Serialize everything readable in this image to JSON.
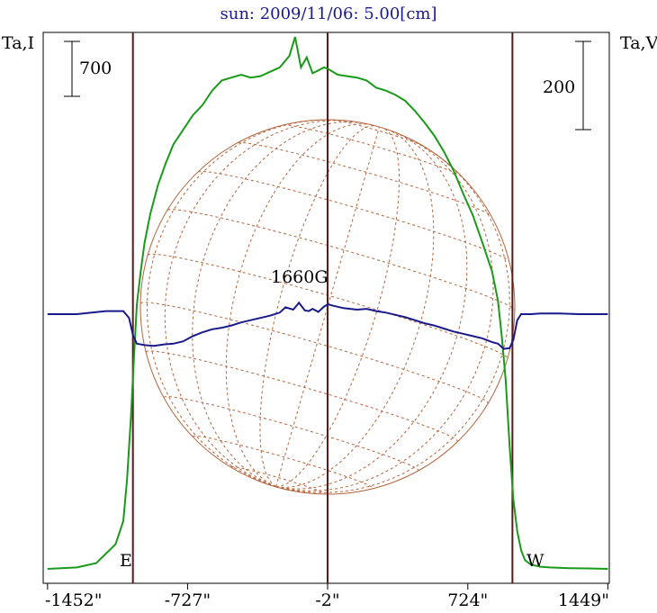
{
  "chart_data": {
    "type": "line",
    "title": "sun: 2009/11/06: 5.00[cm]",
    "left_axis_label": "Ta,I",
    "right_axis_label": "Ta,V",
    "x_ticks": [
      "-1452\"",
      "-727\"",
      "-2\"",
      "724\"",
      "1449\""
    ],
    "x_tick_values": [
      -1452,
      -727,
      -2,
      724,
      1449
    ],
    "xlim": [
      -1452,
      1449
    ],
    "scale_bar_left": "700",
    "scale_bar_right": "200",
    "limb_labels": {
      "east": "E",
      "west": "W"
    },
    "magnetic_field_label": "1660G",
    "vertical_markers": [
      -1010,
      -2,
      955
    ],
    "series": [
      {
        "name": "Ta,I",
        "color": "#1a9a1a",
        "x": [
          -1452,
          -1300,
          -1200,
          -1100,
          -1060,
          -1040,
          -1020,
          -1005,
          -990,
          -970,
          -950,
          -920,
          -880,
          -840,
          -800,
          -750,
          -700,
          -650,
          -600,
          -550,
          -500,
          -450,
          -400,
          -350,
          -300,
          -250,
          -200,
          -170,
          -140,
          -110,
          -80,
          -50,
          -20,
          0,
          50,
          100,
          150,
          200,
          250,
          300,
          350,
          400,
          450,
          500,
          550,
          600,
          650,
          700,
          750,
          800,
          850,
          880,
          900,
          920,
          940,
          960,
          980,
          1000,
          1020,
          1050,
          1100,
          1150,
          1250,
          1350,
          1449
        ],
        "y": [
          0,
          10,
          40,
          170,
          330,
          620,
          1050,
          1450,
          1820,
          2050,
          2250,
          2450,
          2650,
          2800,
          2930,
          3030,
          3130,
          3200,
          3300,
          3370,
          3390,
          3410,
          3390,
          3400,
          3430,
          3460,
          3540,
          3670,
          3460,
          3530,
          3420,
          3440,
          3460,
          3450,
          3410,
          3400,
          3390,
          3370,
          3320,
          3300,
          3270,
          3230,
          3160,
          3080,
          2990,
          2880,
          2750,
          2590,
          2440,
          2250,
          2050,
          1850,
          1600,
          1300,
          850,
          480,
          260,
          130,
          60,
          30,
          15,
          10,
          5,
          3,
          0
        ]
      },
      {
        "name": "Ta,V",
        "color": "#1a1a8c",
        "x": [
          -1452,
          -1300,
          -1150,
          -1060,
          -1030,
          -1010,
          -990,
          -950,
          -900,
          -850,
          -800,
          -750,
          -700,
          -650,
          -600,
          -550,
          -500,
          -450,
          -400,
          -350,
          -300,
          -250,
          -220,
          -180,
          -150,
          -120,
          -100,
          -80,
          -50,
          -20,
          0,
          30,
          80,
          150,
          200,
          250,
          300,
          350,
          400,
          450,
          500,
          550,
          600,
          650,
          700,
          750,
          800,
          850,
          880,
          910,
          940,
          960,
          980,
          1000,
          1050,
          1100,
          1200,
          1300,
          1400,
          1449
        ],
        "y": [
          0,
          0,
          8,
          8,
          -10,
          -55,
          -78,
          -82,
          -84,
          -80,
          -78,
          -72,
          -58,
          -48,
          -40,
          -36,
          -30,
          -22,
          -16,
          -10,
          -4,
          4,
          18,
          12,
          30,
          10,
          8,
          14,
          6,
          20,
          26,
          22,
          16,
          12,
          14,
          8,
          4,
          -2,
          -8,
          -16,
          -24,
          -30,
          -38,
          -46,
          -52,
          -58,
          -64,
          -74,
          -78,
          -92,
          -90,
          -68,
          -16,
          0,
          0,
          2,
          2,
          0,
          0,
          0
        ]
      }
    ]
  }
}
